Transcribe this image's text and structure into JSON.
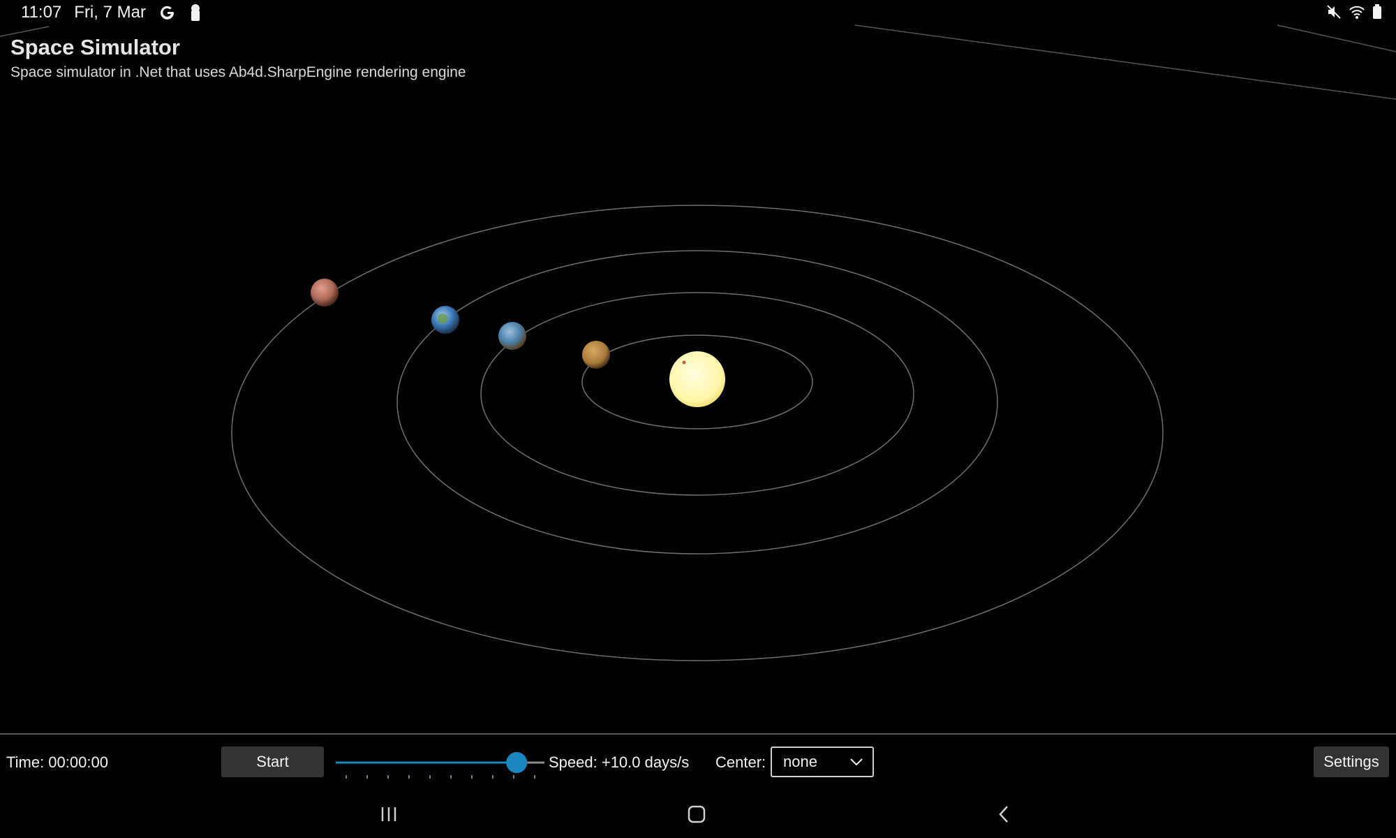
{
  "status_bar": {
    "time": "11:07",
    "date": "Fri, 7 Mar",
    "icons": [
      "google-icon",
      "keyhole-icon",
      "mute-icon",
      "wifi-icon",
      "battery-icon"
    ]
  },
  "header": {
    "title": "Space Simulator",
    "subtitle": "Space simulator in .Net that uses Ab4d.SharpEngine rendering engine"
  },
  "scene": {
    "bodies": [
      "sun",
      "mercury",
      "venus",
      "earth",
      "mars"
    ],
    "colors": {
      "sun": "#fff6a8",
      "orbit": "#6e6e6e",
      "mercury": "#a87a3a",
      "venus": "#4a7fa8",
      "earth": "#3d7ab8",
      "mars": "#b06a58"
    }
  },
  "toolbar": {
    "time_label": "Time: 00:00:00",
    "start_label": "Start",
    "speed_value": 0.9,
    "speed_label": "Speed: +10.0 days/s",
    "center_label": "Center:",
    "center_selected": "none",
    "settings_label": "Settings",
    "accent_color": "#1a86c0"
  },
  "nav_bar": {
    "buttons": [
      "recent-apps-icon",
      "home-icon",
      "back-icon"
    ]
  }
}
